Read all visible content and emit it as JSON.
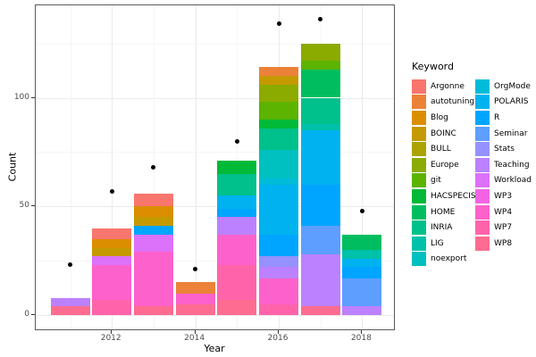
{
  "chart_data": {
    "type": "bar",
    "stacked": true,
    "title": "",
    "xlabel": "Year",
    "ylabel": "Count",
    "legend_title": "Keyword",
    "legend_position": "right",
    "grid": "on",
    "x_axis": {
      "years": [
        2011,
        2012,
        2013,
        2014,
        2015,
        2016,
        2017,
        2018
      ],
      "tick_labels": [
        "2012",
        "2014",
        "2016",
        "2018"
      ],
      "tick_years": [
        2012,
        2014,
        2016,
        2018
      ],
      "minor_grid_years": [
        2011,
        2013,
        2015,
        2017
      ]
    },
    "y_axis": {
      "tick_labels": [
        "0",
        "50",
        "100"
      ],
      "ticks": [
        0,
        50,
        100
      ],
      "minor_gridlines": [
        25,
        75,
        125
      ],
      "range": [
        0,
        142
      ]
    },
    "point_color": "#000000",
    "keywords": [
      {
        "name": "Argonne",
        "color": "#F8766D"
      },
      {
        "name": "autotuning",
        "color": "#EC8239"
      },
      {
        "name": "Blog",
        "color": "#DB8E00"
      },
      {
        "name": "BOINC",
        "color": "#C59900"
      },
      {
        "name": "BULL",
        "color": "#ABA300"
      },
      {
        "name": "Europe",
        "color": "#8CAB00"
      },
      {
        "name": "git",
        "color": "#5CB300"
      },
      {
        "name": "HACSPECIS",
        "color": "#00BA38"
      },
      {
        "name": "HOME",
        "color": "#00BE5F"
      },
      {
        "name": "INRIA",
        "color": "#00C08B"
      },
      {
        "name": "LIG",
        "color": "#00C1A9"
      },
      {
        "name": "noexport",
        "color": "#00C0C0"
      },
      {
        "name": "OrgMode",
        "color": "#00BCD8"
      },
      {
        "name": "POLARIS",
        "color": "#00B3F0"
      },
      {
        "name": "R",
        "color": "#00A5FF"
      },
      {
        "name": "Seminar",
        "color": "#5E9EFF"
      },
      {
        "name": "Stats",
        "color": "#9591FF"
      },
      {
        "name": "Teaching",
        "color": "#BC81FF"
      },
      {
        "name": "Workload",
        "color": "#DC71FA"
      },
      {
        "name": "WP3",
        "color": "#F264E4"
      },
      {
        "name": "WP4",
        "color": "#FD61CB"
      },
      {
        "name": "WP7",
        "color": "#FF64AB"
      },
      {
        "name": "WP8",
        "color": "#FF6C91"
      }
    ],
    "bars": [
      {
        "year": 2011,
        "total": 8,
        "segments": {
          "Teaching": 4,
          "WP8": 4
        }
      },
      {
        "year": 2012,
        "total": 40,
        "segments": {
          "Argonne": 5,
          "Blog": 4,
          "BOINC": 4,
          "Workload": 4,
          "WP4": 16,
          "WP7": 7
        }
      },
      {
        "year": 2013,
        "total": 56,
        "segments": {
          "Argonne": 6,
          "Blog": 5,
          "BOINC": 4,
          "R": 4,
          "Workload": 8,
          "WP4": 25,
          "WP8": 4
        }
      },
      {
        "year": 2014,
        "total": 15,
        "segments": {
          "autotuning": 5,
          "WP4": 5,
          "WP8": 5
        }
      },
      {
        "year": 2015,
        "total": 71,
        "segments": {
          "HACSPECIS": 6,
          "INRIA": 10,
          "POLARIS": 6,
          "R": 4,
          "Teaching": 8,
          "WP4": 14,
          "WP7": 16,
          "WP8": 7
        }
      },
      {
        "year": 2016,
        "total": 114,
        "segments": {
          "autotuning": 4,
          "BOINC": 4,
          "Europe": 8,
          "git": 8,
          "HACSPECIS": 4,
          "INRIA": 10,
          "noexport": 13,
          "OrgMode": 3,
          "POLARIS": 23,
          "R": 10,
          "Stats": 5,
          "Teaching": 5,
          "WP4": 12,
          "WP7": 5
        }
      },
      {
        "year": 2017,
        "total": 125,
        "segments": {
          "Europe": 8,
          "git": 4,
          "HOME": 13,
          "INRIA": 12,
          "LIG": 3,
          "POLARIS": 25,
          "R": 19,
          "Seminar": 13,
          "Teaching": 24,
          "WP8": 4
        }
      },
      {
        "year": 2018,
        "total": 37,
        "segments": {
          "HOME": 7,
          "LIG": 4,
          "POLARIS": 4,
          "R": 5,
          "Seminar": 13,
          "Teaching": 4
        }
      }
    ],
    "dots": [
      {
        "year": 2011,
        "value": 23
      },
      {
        "year": 2012,
        "value": 57
      },
      {
        "year": 2013,
        "value": 68
      },
      {
        "year": 2014,
        "value": 21
      },
      {
        "year": 2015,
        "value": 80
      },
      {
        "year": 2016,
        "value": 134
      },
      {
        "year": 2017,
        "value": 136
      },
      {
        "year": 2018,
        "value": 48
      }
    ]
  }
}
